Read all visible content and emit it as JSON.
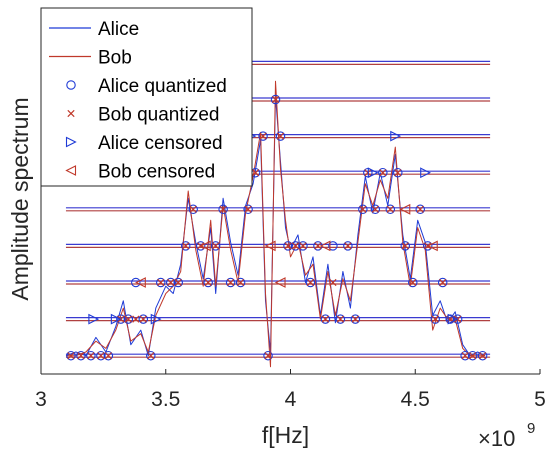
{
  "colors": {
    "alice": "#1f3bd6",
    "bob": "#c0392b",
    "axis": "#262626",
    "threshold_blue": "#3a3ad0",
    "threshold_red": "#b04040"
  },
  "chart_data": {
    "type": "line",
    "xlabel": "f[Hz]",
    "ylabel": "Amplitude spectrum",
    "x_multiplier_base": "×10",
    "x_multiplier_exp": "9",
    "xlim": [
      3.0,
      5.0
    ],
    "ylim": [
      0,
      1
    ],
    "xticks": [
      3.0,
      3.5,
      4.0,
      4.5,
      5.0
    ],
    "xtick_labels": [
      "3",
      "3.5",
      "4",
      "4.5",
      "5"
    ],
    "grid": false,
    "legend_position": "top-left",
    "legend": [
      {
        "label": "Alice",
        "kind": "line",
        "color": "#1f3bd6"
      },
      {
        "label": "Bob",
        "kind": "line",
        "color": "#c0392b"
      },
      {
        "label": "Alice quantized",
        "kind": "circle",
        "color": "#1f3bd6"
      },
      {
        "label": "Bob quantized",
        "kind": "cross",
        "color": "#c0392b"
      },
      {
        "label": "Alice censored",
        "kind": "tri-right",
        "color": "#1f3bd6"
      },
      {
        "label": "Bob censored",
        "kind": "tri-left",
        "color": "#c0392b"
      }
    ],
    "threshold_levels": [
      0.05,
      0.15,
      0.25,
      0.35,
      0.45,
      0.55,
      0.65,
      0.75,
      0.85
    ],
    "threshold_x_start": 3.1,
    "threshold_x_end": 4.8,
    "series": [
      {
        "name": "Alice",
        "x": [
          3.1,
          3.14,
          3.18,
          3.22,
          3.26,
          3.3,
          3.33,
          3.36,
          3.4,
          3.43,
          3.46,
          3.5,
          3.53,
          3.56,
          3.59,
          3.62,
          3.65,
          3.68,
          3.7,
          3.73,
          3.76,
          3.79,
          3.82,
          3.85,
          3.88,
          3.9,
          3.92,
          3.94,
          3.96,
          3.98,
          4.0,
          4.03,
          4.06,
          4.09,
          4.12,
          4.15,
          4.18,
          4.21,
          4.24,
          4.27,
          4.3,
          4.33,
          4.36,
          4.39,
          4.42,
          4.45,
          4.48,
          4.51,
          4.54,
          4.57,
          4.6,
          4.63,
          4.66,
          4.69,
          4.72,
          4.75,
          4.78
        ],
        "y": [
          0.05,
          0.06,
          0.05,
          0.1,
          0.06,
          0.13,
          0.2,
          0.08,
          0.12,
          0.05,
          0.18,
          0.24,
          0.22,
          0.3,
          0.48,
          0.36,
          0.26,
          0.4,
          0.22,
          0.48,
          0.36,
          0.27,
          0.46,
          0.52,
          0.64,
          0.2,
          0.06,
          0.76,
          0.58,
          0.4,
          0.34,
          0.38,
          0.25,
          0.32,
          0.16,
          0.3,
          0.14,
          0.28,
          0.18,
          0.38,
          0.54,
          0.44,
          0.55,
          0.46,
          0.6,
          0.38,
          0.26,
          0.42,
          0.36,
          0.16,
          0.2,
          0.14,
          0.17,
          0.08,
          0.05,
          0.06,
          0.05
        ]
      },
      {
        "name": "Bob",
        "x": [
          3.1,
          3.14,
          3.18,
          3.22,
          3.26,
          3.3,
          3.33,
          3.36,
          3.4,
          3.43,
          3.46,
          3.5,
          3.53,
          3.56,
          3.59,
          3.62,
          3.65,
          3.68,
          3.7,
          3.73,
          3.76,
          3.79,
          3.82,
          3.85,
          3.88,
          3.9,
          3.92,
          3.94,
          3.96,
          3.98,
          4.0,
          4.03,
          4.06,
          4.09,
          4.12,
          4.15,
          4.18,
          4.21,
          4.24,
          4.27,
          4.3,
          4.33,
          4.36,
          4.39,
          4.42,
          4.45,
          4.48,
          4.51,
          4.54,
          4.57,
          4.6,
          4.63,
          4.66,
          4.69,
          4.72,
          4.75,
          4.78
        ],
        "y": [
          0.05,
          0.05,
          0.06,
          0.09,
          0.07,
          0.12,
          0.18,
          0.09,
          0.11,
          0.06,
          0.16,
          0.22,
          0.24,
          0.28,
          0.5,
          0.34,
          0.24,
          0.42,
          0.24,
          0.46,
          0.34,
          0.25,
          0.44,
          0.54,
          0.66,
          0.22,
          0.02,
          0.8,
          0.56,
          0.42,
          0.32,
          0.36,
          0.27,
          0.3,
          0.15,
          0.28,
          0.16,
          0.26,
          0.2,
          0.36,
          0.52,
          0.46,
          0.53,
          0.48,
          0.62,
          0.36,
          0.24,
          0.4,
          0.34,
          0.12,
          0.18,
          0.15,
          0.15,
          0.07,
          0.05,
          0.05,
          0.05
        ]
      }
    ],
    "alice_quantized": [
      [
        3.12,
        0.05
      ],
      [
        3.16,
        0.05
      ],
      [
        3.2,
        0.05
      ],
      [
        3.24,
        0.05
      ],
      [
        3.27,
        0.05
      ],
      [
        3.32,
        0.15
      ],
      [
        3.35,
        0.15
      ],
      [
        3.38,
        0.25
      ],
      [
        3.41,
        0.15
      ],
      [
        3.44,
        0.05
      ],
      [
        3.48,
        0.25
      ],
      [
        3.52,
        0.25
      ],
      [
        3.55,
        0.25
      ],
      [
        3.58,
        0.35
      ],
      [
        3.61,
        0.45
      ],
      [
        3.64,
        0.35
      ],
      [
        3.67,
        0.25
      ],
      [
        3.7,
        0.35
      ],
      [
        3.73,
        0.45
      ],
      [
        3.76,
        0.25
      ],
      [
        3.8,
        0.25
      ],
      [
        3.83,
        0.45
      ],
      [
        3.86,
        0.55
      ],
      [
        3.89,
        0.65
      ],
      [
        3.91,
        0.05
      ],
      [
        3.94,
        0.75
      ],
      [
        3.96,
        0.65
      ],
      [
        3.99,
        0.35
      ],
      [
        4.02,
        0.35
      ],
      [
        4.05,
        0.35
      ],
      [
        4.08,
        0.25
      ],
      [
        4.11,
        0.35
      ],
      [
        4.14,
        0.15
      ],
      [
        4.17,
        0.35
      ],
      [
        4.2,
        0.15
      ],
      [
        4.23,
        0.35
      ],
      [
        4.26,
        0.15
      ],
      [
        4.29,
        0.45
      ],
      [
        4.31,
        0.55
      ],
      [
        4.34,
        0.45
      ],
      [
        4.37,
        0.55
      ],
      [
        4.4,
        0.45
      ],
      [
        4.43,
        0.55
      ],
      [
        4.46,
        0.35
      ],
      [
        4.49,
        0.25
      ],
      [
        4.52,
        0.45
      ],
      [
        4.55,
        0.35
      ],
      [
        4.58,
        0.15
      ],
      [
        4.61,
        0.25
      ],
      [
        4.64,
        0.15
      ],
      [
        4.67,
        0.15
      ],
      [
        4.7,
        0.05
      ],
      [
        4.73,
        0.05
      ],
      [
        4.77,
        0.05
      ]
    ],
    "bob_quantized": [
      [
        3.12,
        0.05
      ],
      [
        3.16,
        0.05
      ],
      [
        3.2,
        0.05
      ],
      [
        3.24,
        0.05
      ],
      [
        3.27,
        0.05
      ],
      [
        3.32,
        0.15
      ],
      [
        3.35,
        0.15
      ],
      [
        3.38,
        0.15
      ],
      [
        3.41,
        0.15
      ],
      [
        3.44,
        0.05
      ],
      [
        3.48,
        0.25
      ],
      [
        3.52,
        0.25
      ],
      [
        3.55,
        0.25
      ],
      [
        3.58,
        0.35
      ],
      [
        3.61,
        0.45
      ],
      [
        3.64,
        0.35
      ],
      [
        3.67,
        0.25
      ],
      [
        3.7,
        0.35
      ],
      [
        3.73,
        0.45
      ],
      [
        3.76,
        0.25
      ],
      [
        3.8,
        0.25
      ],
      [
        3.83,
        0.45
      ],
      [
        3.86,
        0.55
      ],
      [
        3.89,
        0.65
      ],
      [
        3.91,
        0.05
      ],
      [
        3.94,
        0.75
      ],
      [
        3.96,
        0.65
      ],
      [
        3.99,
        0.35
      ],
      [
        4.02,
        0.35
      ],
      [
        4.05,
        0.35
      ],
      [
        4.08,
        0.25
      ],
      [
        4.11,
        0.35
      ],
      [
        4.14,
        0.15
      ],
      [
        4.17,
        0.25
      ],
      [
        4.2,
        0.15
      ],
      [
        4.23,
        0.35
      ],
      [
        4.26,
        0.15
      ],
      [
        4.29,
        0.45
      ],
      [
        4.31,
        0.55
      ],
      [
        4.34,
        0.45
      ],
      [
        4.37,
        0.55
      ],
      [
        4.4,
        0.45
      ],
      [
        4.43,
        0.55
      ],
      [
        4.46,
        0.35
      ],
      [
        4.49,
        0.25
      ],
      [
        4.52,
        0.45
      ],
      [
        4.55,
        0.35
      ],
      [
        4.58,
        0.15
      ],
      [
        4.61,
        0.25
      ],
      [
        4.64,
        0.15
      ],
      [
        4.67,
        0.15
      ],
      [
        4.7,
        0.05
      ],
      [
        4.73,
        0.05
      ],
      [
        4.77,
        0.05
      ]
    ],
    "alice_censored": [
      [
        3.21,
        0.15
      ],
      [
        3.3,
        0.15
      ],
      [
        3.46,
        0.15
      ],
      [
        3.62,
        0.55
      ],
      [
        3.8,
        0.55
      ],
      [
        3.84,
        0.65
      ],
      [
        4.33,
        0.55
      ],
      [
        4.42,
        0.65
      ],
      [
        4.54,
        0.55
      ],
      [
        4.65,
        0.15
      ]
    ],
    "bob_censored": [
      [
        3.4,
        0.25
      ],
      [
        3.66,
        0.35
      ],
      [
        3.92,
        0.35
      ],
      [
        3.96,
        0.25
      ],
      [
        4.14,
        0.35
      ],
      [
        4.46,
        0.45
      ],
      [
        4.57,
        0.35
      ]
    ]
  }
}
